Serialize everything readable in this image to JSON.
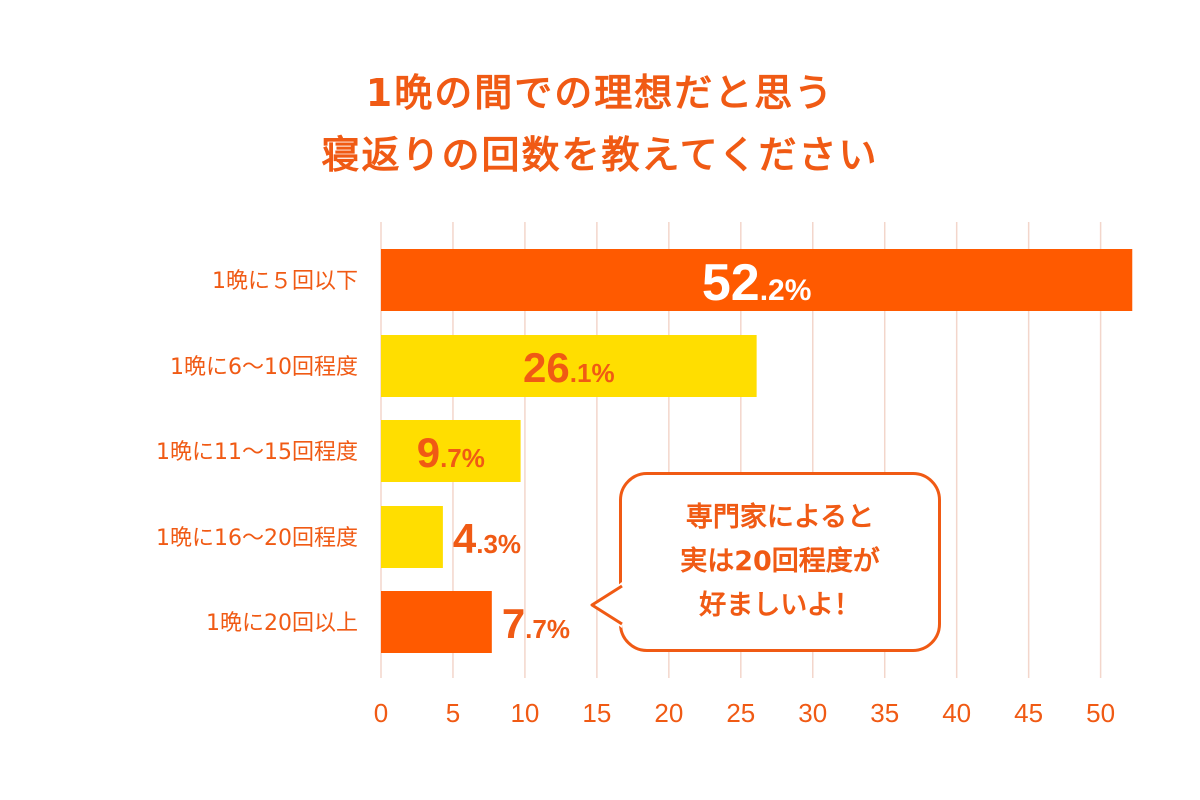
{
  "title": {
    "line1": "1晩の間での理想だと思う",
    "line2": "寝返りの回数を教えてください"
  },
  "chart_data": {
    "type": "bar",
    "orientation": "horizontal",
    "categories": [
      "1晩に５回以下",
      "1晩に6〜10回程度",
      "1晩に11〜15回程度",
      "1晩に16〜20回程度",
      "1晩に20回以上"
    ],
    "values": [
      52.2,
      26.1,
      9.7,
      4.3,
      7.7
    ],
    "value_labels": [
      {
        "main": "52",
        "small": ".2%"
      },
      {
        "main": "26",
        "small": ".1%"
      },
      {
        "main": "9",
        "small": ".7%"
      },
      {
        "main": "4",
        "small": ".3%"
      },
      {
        "main": "7",
        "small": ".7%"
      }
    ],
    "bar_colors": [
      "#FF5A00",
      "#FFDE00",
      "#FFDE00",
      "#FFDE00",
      "#FF5A00"
    ],
    "label_colors": [
      "#FFFFFF",
      "#F05A14",
      "#F05A14",
      "#F05A14",
      "#F05A14"
    ],
    "label_inside": [
      true,
      true,
      true,
      false,
      false
    ],
    "xlim": [
      0,
      51
    ],
    "xticks": [
      0,
      5,
      10,
      15,
      20,
      25,
      30,
      35,
      40,
      45,
      50
    ],
    "grid": true,
    "unit": "%"
  },
  "callout": {
    "lines": [
      "専門家によると",
      "実は20回程度が",
      "好ましいよ！"
    ]
  },
  "colors": {
    "accent": "#F05A14",
    "bar_orange": "#FF5A00",
    "bar_yellow": "#FFDE00",
    "grid": "#F3D6CB"
  }
}
